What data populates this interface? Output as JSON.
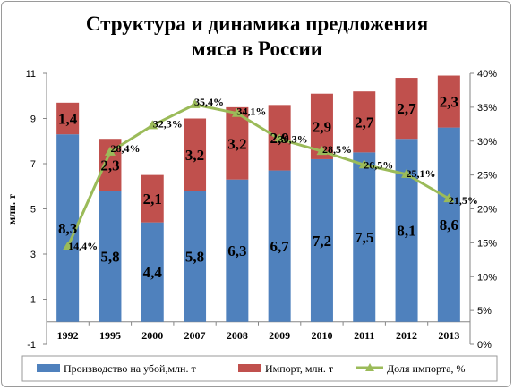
{
  "chart_data": {
    "type": "bar",
    "stacked": true,
    "title_line1": "Структура  и динамика предложения",
    "title_line2": "мяса в России",
    "ylabel": "млн. т",
    "categories": [
      "1992",
      "1995",
      "2000",
      "2007",
      "2008",
      "2009",
      "2010",
      "2011",
      "2012",
      "2013"
    ],
    "series": [
      {
        "name": "Производство  на убой,млн. т",
        "color": "#4f81bd",
        "axis": "left",
        "values": [
          8.3,
          5.8,
          4.4,
          5.8,
          6.3,
          6.7,
          7.2,
          7.5,
          8.1,
          8.6
        ],
        "labels": [
          "8,3",
          "5,8",
          "4,4",
          "5,8",
          "6,3",
          "6,7",
          "7,2",
          "7,5",
          "8,1",
          "8,6"
        ]
      },
      {
        "name": "Импорт, млн. т",
        "color": "#c0504d",
        "axis": "left",
        "values": [
          1.4,
          2.3,
          2.1,
          3.2,
          3.2,
          2.9,
          2.9,
          2.7,
          2.7,
          2.3
        ],
        "labels": [
          "1,4",
          "2,3",
          "2,1",
          "3,2",
          "3,2",
          "2,9",
          "2,9",
          "2,7",
          "2,7",
          "2,3"
        ]
      },
      {
        "name": "Доля импорта, %",
        "color": "#9bbb59",
        "type": "line",
        "axis": "right",
        "values": [
          14.4,
          28.4,
          32.3,
          35.4,
          34.1,
          30.3,
          28.5,
          26.5,
          25.1,
          21.5
        ],
        "labels": [
          "14,4%",
          "28,4%",
          "32,3%",
          "35,4%",
          "34,1%",
          "30,3%",
          "28,5%",
          "26,5%",
          "25,1%",
          "21,5%"
        ]
      }
    ],
    "y_left": {
      "min": -1,
      "max": 11,
      "ticks": [
        "-1",
        "1",
        "3",
        "5",
        "7",
        "9",
        "11"
      ]
    },
    "y_right": {
      "min": 0,
      "max": 40,
      "ticks": [
        "0%",
        "5%",
        "10%",
        "15%",
        "20%",
        "25%",
        "30%",
        "35%",
        "40%"
      ]
    },
    "grid": false,
    "legend_position": "bottom"
  }
}
